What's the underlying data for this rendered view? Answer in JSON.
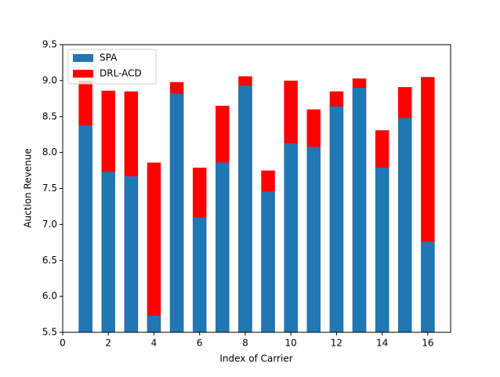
{
  "chart_data": {
    "type": "bar",
    "x_label": "Index of Carrier",
    "y_label": "Auction Revenue",
    "categories": [
      1,
      2,
      3,
      4,
      5,
      6,
      7,
      8,
      9,
      10,
      11,
      12,
      13,
      14,
      15,
      16
    ],
    "series": [
      {
        "name": "SPA",
        "color": "#1f77b4",
        "values": [
          8.38,
          7.73,
          7.67,
          5.73,
          8.82,
          7.1,
          7.86,
          8.93,
          7.46,
          8.13,
          8.08,
          8.64,
          8.9,
          7.79,
          8.48,
          6.76
        ]
      },
      {
        "name": "DRL-ACD",
        "color": "#ff0000",
        "values": [
          9.0,
          8.86,
          8.85,
          7.86,
          8.98,
          7.79,
          8.65,
          9.06,
          7.75,
          9.0,
          8.6,
          8.85,
          9.03,
          8.31,
          8.91,
          9.05
        ]
      }
    ],
    "xlim": [
      0,
      17
    ],
    "xticks": [
      0,
      2,
      4,
      6,
      8,
      10,
      12,
      14,
      16
    ],
    "ylim": [
      5.5,
      9.5
    ],
    "yticks": [
      5.5,
      {
        "value": 6.0,
        "label": "6.0"
      },
      6.5,
      {
        "value": 7.0,
        "label": "7.0"
      },
      7.5,
      {
        "value": 8.0,
        "label": "8.0"
      },
      8.5,
      {
        "value": 9.0,
        "label": "9.0"
      },
      9.5
    ],
    "legend": "upper left"
  }
}
